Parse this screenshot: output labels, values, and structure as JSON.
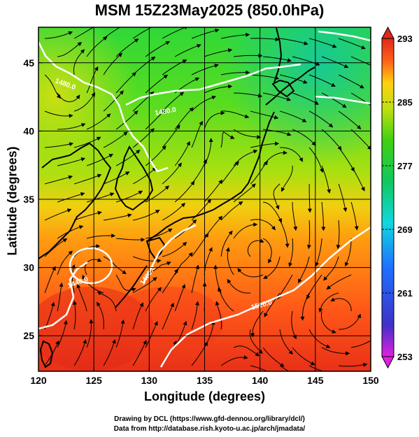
{
  "title": "MSM 15Z23May2025 (850.0hPa)",
  "xaxis": {
    "label": "Longitude (degrees)",
    "ticks": [
      {
        "value": 120,
        "label": "120"
      },
      {
        "value": 125,
        "label": "125"
      },
      {
        "value": 130,
        "label": "130"
      },
      {
        "value": 135,
        "label": "135"
      },
      {
        "value": 140,
        "label": "140"
      },
      {
        "value": 145,
        "label": "145"
      },
      {
        "value": 150,
        "label": "150"
      }
    ],
    "range": [
      120,
      150
    ]
  },
  "yaxis": {
    "label": "Latitude  (degrees)",
    "ticks": [
      {
        "value": 25,
        "label": "25"
      },
      {
        "value": 30,
        "label": "30"
      },
      {
        "value": 35,
        "label": "35"
      },
      {
        "value": 40,
        "label": "40"
      },
      {
        "value": 45,
        "label": "45"
      }
    ],
    "range": [
      22.4,
      47.6
    ]
  },
  "colorbar": {
    "labels": [
      "293",
      "285",
      "277",
      "269",
      "261",
      "253"
    ],
    "min": 253,
    "max": 293,
    "colors": [
      "#e020e0",
      "#3030c8",
      "#1e80ff",
      "#10d8e0",
      "#10c870",
      "#30d010",
      "#a0e010",
      "#f0f010",
      "#ff9010",
      "#ff4020",
      "#e02818"
    ]
  },
  "contour_labels": [
    "1440.0",
    "1480.0",
    "1520.0",
    "1480.0",
    "1480.0"
  ],
  "credits": {
    "line1": "Drawing by DCL (https://www.gfd-dennou.org/library/dcl/)",
    "line2": "Data from http://database.rish.kyoto-u.ac.jp/arch/jmadata/"
  },
  "colors": {
    "grid": "#000000",
    "contour": "#ffffff",
    "coast": "#000000"
  }
}
